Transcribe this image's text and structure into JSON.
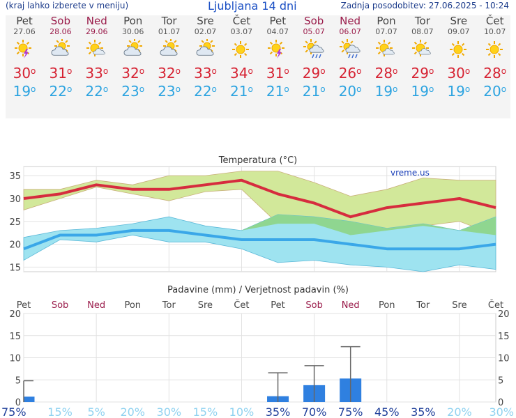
{
  "header": {
    "menu_hint": "(kraj lahko izberete v meniju)",
    "title": "Ljubljana 14 dni",
    "updated": "Zadnja posodobitev: 27.06.2025 - 10:24"
  },
  "days": [
    {
      "name": "Pet",
      "date": "27.06",
      "weekend": false,
      "icon": "sun-storm-icon",
      "max": "30",
      "min": "19"
    },
    {
      "name": "Sob",
      "date": "28.06",
      "weekend": true,
      "icon": "sun-cloud-icon",
      "max": "31",
      "min": "22"
    },
    {
      "name": "Ned",
      "date": "29.06",
      "weekend": true,
      "icon": "sun-small-cloud-icon",
      "max": "33",
      "min": "22"
    },
    {
      "name": "Pon",
      "date": "30.06",
      "weekend": false,
      "icon": "sun-cloud-icon",
      "max": "32",
      "min": "23"
    },
    {
      "name": "Tor",
      "date": "01.07",
      "weekend": false,
      "icon": "sun-cloud-icon",
      "max": "32",
      "min": "23"
    },
    {
      "name": "Sre",
      "date": "02.07",
      "weekend": false,
      "icon": "sun-cloud-icon",
      "max": "33",
      "min": "22"
    },
    {
      "name": "Čet",
      "date": "03.07",
      "weekend": false,
      "icon": "sun-icon",
      "max": "34",
      "min": "21"
    },
    {
      "name": "Pet",
      "date": "04.07",
      "weekend": false,
      "icon": "sun-storm-icon",
      "max": "31",
      "min": "21"
    },
    {
      "name": "Sob",
      "date": "05.07",
      "weekend": true,
      "icon": "sun-rain-icon",
      "max": "29",
      "min": "21"
    },
    {
      "name": "Ned",
      "date": "06.07",
      "weekend": true,
      "icon": "sun-rain-icon",
      "max": "26",
      "min": "20"
    },
    {
      "name": "Pon",
      "date": "07.07",
      "weekend": false,
      "icon": "sun-small-cloud-icon",
      "max": "28",
      "min": "19"
    },
    {
      "name": "Tor",
      "date": "08.07",
      "weekend": false,
      "icon": "sun-small-cloud-icon",
      "max": "29",
      "min": "19"
    },
    {
      "name": "Sre",
      "date": "09.07",
      "weekend": false,
      "icon": "sun-icon",
      "max": "30",
      "min": "19"
    },
    {
      "name": "Čet",
      "date": "10.07",
      "weekend": false,
      "icon": "sun-icon",
      "max": "28",
      "min": "20"
    }
  ],
  "chart_data": [
    {
      "type": "line",
      "title": "Temperatura (°C)",
      "watermark": "vreme.us",
      "ylim": [
        14,
        37
      ],
      "yticks": [
        15,
        20,
        25,
        30,
        35
      ],
      "grid": true,
      "colors": {
        "max": "#d62c3e",
        "min": "#3aa7e8",
        "max_band": "#d2e89a",
        "min_band": "#9ee3f0",
        "overlap": "#8fd690"
      },
      "categories": [
        "Pet",
        "Sob",
        "Ned",
        "Pon",
        "Tor",
        "Sre",
        "Čet",
        "Pet",
        "Sob",
        "Ned",
        "Pon",
        "Tor",
        "Sre",
        "Čet"
      ],
      "series": [
        {
          "name": "max",
          "values": [
            30,
            31,
            33,
            32,
            32,
            33,
            34,
            31,
            29,
            26,
            28,
            29,
            30,
            28
          ]
        },
        {
          "name": "min",
          "values": [
            19,
            22,
            22,
            23,
            23,
            22,
            21,
            21,
            21,
            20,
            19,
            19,
            19,
            20
          ]
        },
        {
          "name": "max_upper",
          "values": [
            32,
            32,
            34,
            33,
            35,
            35,
            36,
            36,
            33.5,
            30.5,
            32,
            34.5,
            34,
            34
          ]
        },
        {
          "name": "max_lower",
          "values": [
            27.5,
            30,
            32.5,
            31,
            29.5,
            31.5,
            32,
            24.5,
            24.5,
            22,
            23,
            24,
            25,
            22
          ]
        },
        {
          "name": "min_upper",
          "values": [
            21.5,
            23,
            23.5,
            24.5,
            26,
            24,
            23,
            26.5,
            26,
            25,
            23.5,
            24.5,
            23,
            26
          ]
        },
        {
          "name": "min_lower",
          "values": [
            16.5,
            21,
            20.5,
            22,
            20.5,
            20.5,
            19,
            16,
            16.5,
            15.5,
            15,
            14,
            15.5,
            14.5
          ]
        }
      ]
    },
    {
      "type": "bar",
      "title": "Padavine (mm) / Verjetnost padavin (%)",
      "ylim": [
        0,
        20
      ],
      "yticks": [
        0,
        5,
        10,
        15,
        20
      ],
      "grid": true,
      "categories": [
        "Pet",
        "Sob",
        "Ned",
        "Pon",
        "Tor",
        "Sre",
        "Čet",
        "Pet",
        "Sob",
        "Ned",
        "Pon",
        "Tor",
        "Sre",
        "Čet"
      ],
      "values": [
        1.2,
        0,
        0,
        0,
        0,
        0,
        0,
        1.3,
        3.8,
        5.3,
        0,
        0,
        0,
        0
      ],
      "error_max": [
        4.8,
        0,
        0,
        0,
        0,
        0,
        0,
        6.6,
        8.2,
        12.5,
        0,
        0,
        0,
        0
      ],
      "probability": [
        "75%",
        "15%",
        "5%",
        "20%",
        "30%",
        "15%",
        "10%",
        "35%",
        "70%",
        "75%",
        "45%",
        "35%",
        "20%",
        "30%"
      ],
      "colors": {
        "bar": "#2f80e0",
        "whisker": "#666666",
        "prob_strong": "#1f3f9a",
        "prob_weak": "#8fd2f0"
      }
    }
  ]
}
